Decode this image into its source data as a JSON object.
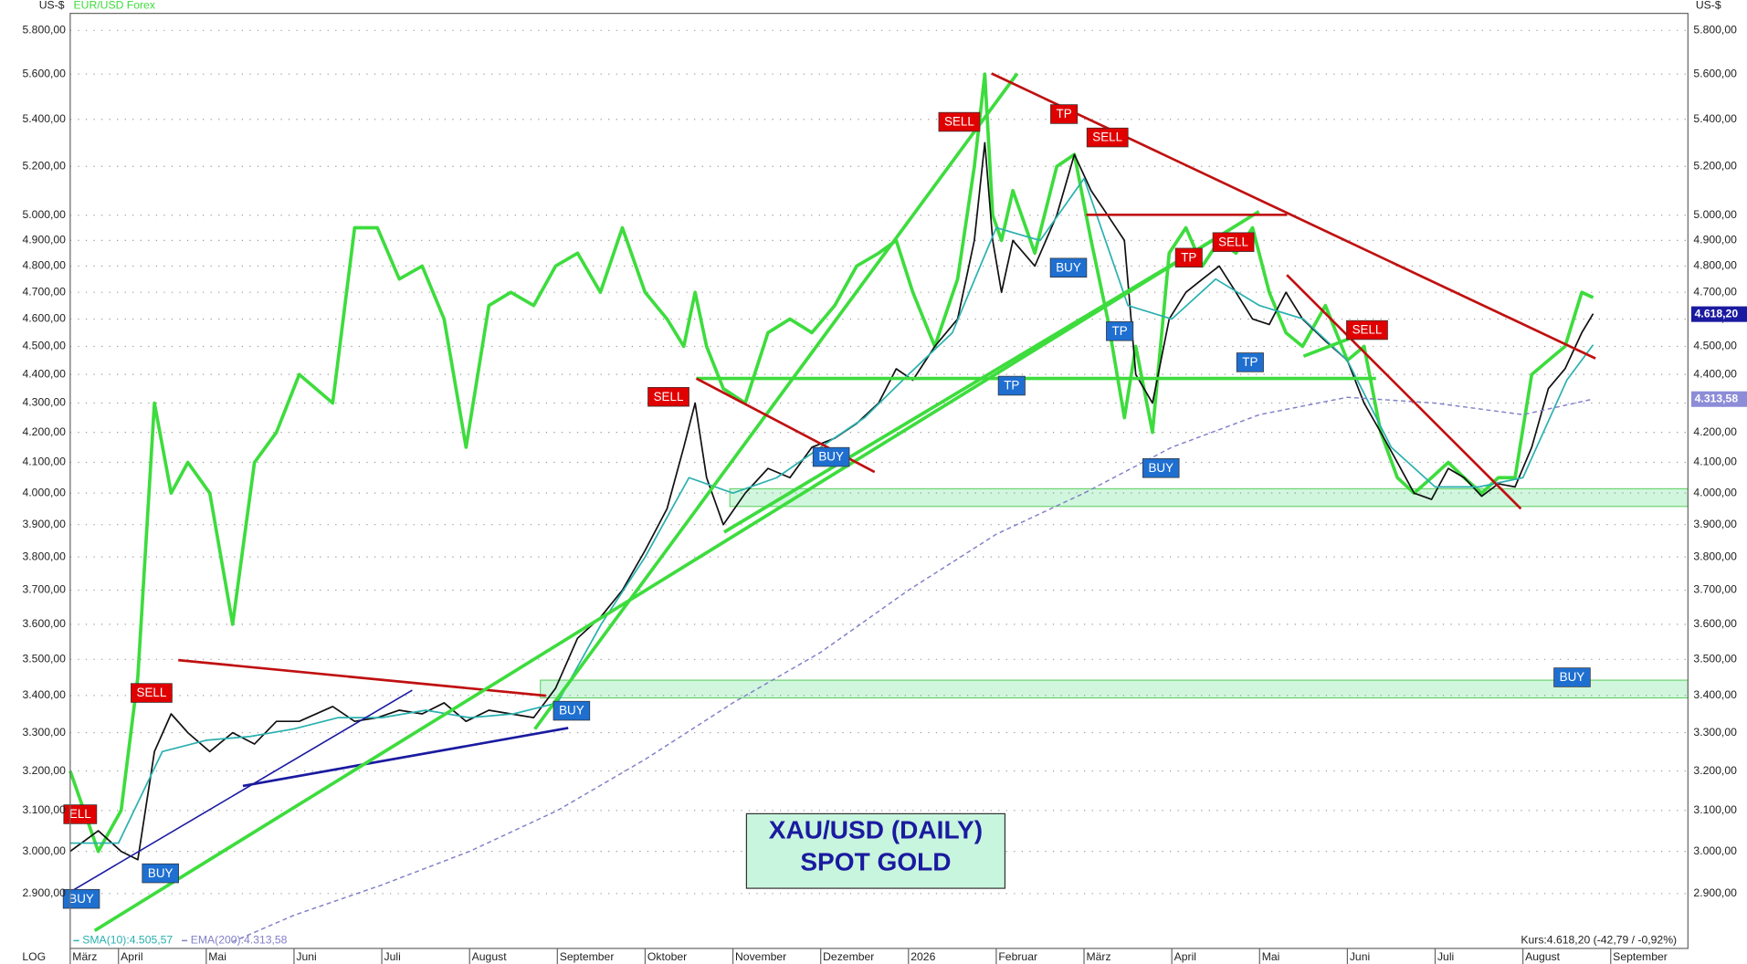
{
  "chart_data": {
    "type": "line",
    "log_scale": true,
    "grid": true,
    "axis_unit_left": "US-$",
    "axis_unit_right": "US-$",
    "scale_label": "LOG",
    "ylim": [
      2775,
      5880
    ],
    "yticks": [
      {
        "value": 2900,
        "label": "2.900,00"
      },
      {
        "value": 3000,
        "label": "3.000,00"
      },
      {
        "value": 3100,
        "label": "3.100,00"
      },
      {
        "value": 3200,
        "label": "3.200,00"
      },
      {
        "value": 3300,
        "label": "3.300,00"
      },
      {
        "value": 3400,
        "label": "3.400,00"
      },
      {
        "value": 3500,
        "label": "3.500,00"
      },
      {
        "value": 3600,
        "label": "3.600,00"
      },
      {
        "value": 3700,
        "label": "3.700,00"
      },
      {
        "value": 3800,
        "label": "3.800,00"
      },
      {
        "value": 3900,
        "label": "3.900,00"
      },
      {
        "value": 4000,
        "label": "4.000,00"
      },
      {
        "value": 4100,
        "label": "4.100,00"
      },
      {
        "value": 4200,
        "label": "4.200,00"
      },
      {
        "value": 4300,
        "label": "4.300,00"
      },
      {
        "value": 4400,
        "label": "4.400,00"
      },
      {
        "value": 4500,
        "label": "4.500,00"
      },
      {
        "value": 4600,
        "label": "4.600,00"
      },
      {
        "value": 4700,
        "label": "4.700,00"
      },
      {
        "value": 4800,
        "label": "4.800,00"
      },
      {
        "value": 4900,
        "label": "4.900,00"
      },
      {
        "value": 5000,
        "label": "5.000,00"
      },
      {
        "value": 5200,
        "label": "5.200,00"
      },
      {
        "value": 5400,
        "label": "5.400,00"
      },
      {
        "value": 5600,
        "label": "5.600,00"
      },
      {
        "value": 5800,
        "label": "5.800,00"
      }
    ],
    "xlim": [
      0.45,
      18.88
    ],
    "xticks": [
      {
        "value": 0.45,
        "label": "März"
      },
      {
        "value": 1,
        "label": "April"
      },
      {
        "value": 2,
        "label": "Mai"
      },
      {
        "value": 3,
        "label": "Juni"
      },
      {
        "value": 4,
        "label": "Juli"
      },
      {
        "value": 5,
        "label": "August"
      },
      {
        "value": 6,
        "label": "September"
      },
      {
        "value": 7,
        "label": "Oktober"
      },
      {
        "value": 8,
        "label": "November"
      },
      {
        "value": 9,
        "label": "Dezember"
      },
      {
        "value": 10,
        "label": "2026"
      },
      {
        "value": 11,
        "label": "Februar"
      },
      {
        "value": 12,
        "label": "März"
      },
      {
        "value": 13,
        "label": "April"
      },
      {
        "value": 14,
        "label": "Mai"
      },
      {
        "value": 15,
        "label": "Juni"
      },
      {
        "value": 16,
        "label": "Juli"
      },
      {
        "value": 17,
        "label": "August"
      },
      {
        "value": 18,
        "label": "September"
      }
    ],
    "series": [
      {
        "name": "EUR/USD Forex",
        "color": "#3ddc3d",
        "x": [
          0.45,
          0.77,
          1.03,
          1.22,
          1.41,
          1.6,
          1.79,
          2.04,
          2.3,
          2.55,
          2.8,
          3.06,
          3.44,
          3.69,
          3.95,
          4.2,
          4.46,
          4.71,
          4.96,
          5.22,
          5.47,
          5.73,
          5.98,
          6.23,
          6.49,
          6.74,
          7.0,
          7.25,
          7.44,
          7.57,
          7.7,
          7.89,
          8.14,
          8.4,
          8.65,
          8.9,
          9.16,
          9.41,
          9.66,
          9.86,
          10.05,
          10.3,
          10.56,
          10.75,
          10.87,
          10.96,
          11.06,
          11.19,
          11.44,
          11.69,
          11.89,
          12.08,
          12.27,
          12.46,
          12.59,
          12.78,
          12.97,
          13.16,
          13.35,
          13.54,
          13.73,
          13.92,
          14.11,
          14.3,
          14.49,
          14.75,
          15.0,
          15.19,
          15.38,
          15.57,
          15.76,
          15.96,
          16.15,
          16.33,
          16.53,
          16.72,
          16.91,
          17.1,
          17.29,
          17.48,
          17.67,
          17.8
        ],
        "values": [
          3200,
          3000,
          3100,
          3450,
          4300,
          4000,
          4100,
          4000,
          3600,
          4100,
          4200,
          4400,
          4300,
          4950,
          4950,
          4750,
          4800,
          4600,
          4150,
          4650,
          4700,
          4650,
          4800,
          4850,
          4700,
          4950,
          4700,
          4600,
          4500,
          4700,
          4500,
          4350,
          4300,
          4550,
          4600,
          4550,
          4650,
          4800,
          4850,
          4900,
          4700,
          4500,
          4750,
          5200,
          5600,
          5000,
          4900,
          5100,
          4850,
          5200,
          5250,
          4900,
          4600,
          4250,
          4500,
          4200,
          4850,
          4950,
          4800,
          4900,
          4850,
          4950,
          4700,
          4550,
          4500,
          4650,
          4450,
          4500,
          4200,
          4050,
          4000,
          4050,
          4100,
          4050,
          4000,
          4050,
          4050,
          4400,
          4450,
          4500,
          4700,
          4680
        ]
      },
      {
        "color": "#111111",
        "x": [
          0.45,
          0.77,
          1.03,
          1.22,
          1.41,
          1.6,
          1.79,
          2.04,
          2.3,
          2.55,
          2.8,
          3.06,
          3.44,
          3.69,
          3.95,
          4.2,
          4.46,
          4.71,
          4.96,
          5.22,
          5.47,
          5.73,
          5.98,
          6.23,
          6.49,
          6.74,
          7.0,
          7.25,
          7.44,
          7.57,
          7.7,
          7.89,
          8.14,
          8.4,
          8.65,
          8.9,
          9.16,
          9.41,
          9.66,
          9.86,
          10.05,
          10.3,
          10.56,
          10.75,
          10.87,
          10.96,
          11.06,
          11.19,
          11.44,
          11.69,
          11.89,
          12.08,
          12.27,
          12.46,
          12.59,
          12.78,
          12.97,
          13.16,
          13.35,
          13.54,
          13.73,
          13.92,
          14.11,
          14.3,
          14.49,
          14.75,
          15.0,
          15.19,
          15.38,
          15.57,
          15.76,
          15.96,
          16.15,
          16.33,
          16.53,
          16.72,
          16.91,
          17.1,
          17.29,
          17.48,
          17.67,
          17.8
        ],
        "values": [
          3000,
          3050,
          3000,
          2980,
          3250,
          3350,
          3300,
          3250,
          3300,
          3270,
          3330,
          3330,
          3370,
          3330,
          3340,
          3360,
          3350,
          3380,
          3330,
          3360,
          3350,
          3340,
          3420,
          3560,
          3620,
          3700,
          3820,
          3950,
          4150,
          4300,
          4050,
          3900,
          4000,
          4080,
          4050,
          4150,
          4180,
          4230,
          4300,
          4420,
          4380,
          4500,
          4600,
          4900,
          5300,
          4900,
          4700,
          4900,
          4800,
          5000,
          5250,
          5100,
          5000,
          4900,
          4400,
          4300,
          4600,
          4700,
          4750,
          4800,
          4700,
          4600,
          4580,
          4700,
          4600,
          4520,
          4450,
          4300,
          4200,
          4100,
          4000,
          3980,
          4080,
          4050,
          3990,
          4030,
          4020,
          4150,
          4350,
          4420,
          4550,
          4620
        ]
      },
      {
        "name": "SMA(10):4.505,57",
        "color": "#2ab0b0",
        "x": [
          0.45,
          1.0,
          1.5,
          2.0,
          2.5,
          3.0,
          3.5,
          4.0,
          4.5,
          5.0,
          5.5,
          6.0,
          6.5,
          7.0,
          7.5,
          8.0,
          8.5,
          9.0,
          9.5,
          10.0,
          10.5,
          11.0,
          11.5,
          12.0,
          12.5,
          13.0,
          13.5,
          14.0,
          14.5,
          15.0,
          15.5,
          16.0,
          16.5,
          17.0,
          17.5,
          17.8
        ],
        "values": [
          3020,
          3020,
          3250,
          3280,
          3290,
          3310,
          3340,
          3340,
          3360,
          3340,
          3350,
          3380,
          3600,
          3800,
          4050,
          4000,
          4050,
          4150,
          4250,
          4400,
          4550,
          4950,
          4900,
          5150,
          4650,
          4600,
          4750,
          4650,
          4600,
          4450,
          4150,
          4020,
          4020,
          4050,
          4380,
          4505.57
        ]
      },
      {
        "name": "EMA(200):4.313,58",
        "color": "#8080c8",
        "dash": true,
        "x": [
          2.3,
          3.0,
          4.0,
          5.0,
          6.0,
          7.0,
          8.0,
          9.0,
          10.0,
          11.0,
          12.0,
          13.0,
          14.0,
          15.0,
          16.0,
          17.0,
          17.8
        ],
        "values": [
          2790,
          2850,
          2920,
          3000,
          3100,
          3230,
          3380,
          3520,
          3700,
          3870,
          4000,
          4150,
          4260,
          4320,
          4300,
          4260,
          4313.58
        ]
      }
    ],
    "price_tags": [
      {
        "value": 4618.2,
        "label": "4.618,20",
        "color": "#1a1aa0"
      },
      {
        "value": 4313.58,
        "label": "4.313,58",
        "color": "#8c8cd8"
      }
    ],
    "quote": "Kurs:4.618,20 (-42,79 / -0,92%)",
    "title_lines": [
      "XAU/USD (DAILY)",
      "SPOT GOLD"
    ],
    "annotations": [
      {
        "text": "ELL",
        "color": "#e00000"
      },
      {
        "text": "BUY",
        "color": "#1e6fd0"
      },
      {
        "text": "SELL",
        "color": "#e00000"
      },
      {
        "text": "BUY",
        "color": "#1e6fd0"
      },
      {
        "text": "BUY",
        "color": "#1e6fd0"
      },
      {
        "text": "SELL",
        "color": "#e00000"
      },
      {
        "text": "BUY",
        "color": "#1e6fd0"
      },
      {
        "text": "SELL",
        "color": "#e00000"
      },
      {
        "text": "TP",
        "color": "#1e6fd0"
      },
      {
        "text": "TP",
        "color": "#e00000"
      },
      {
        "text": "BUY",
        "color": "#1e6fd0"
      },
      {
        "text": "SELL",
        "color": "#e00000"
      },
      {
        "text": "TP",
        "color": "#1e6fd0"
      },
      {
        "text": "TP",
        "color": "#e00000"
      },
      {
        "text": "SELL",
        "color": "#e00000"
      },
      {
        "text": "BUY",
        "color": "#1e6fd0"
      },
      {
        "text": "TP",
        "color": "#1e6fd0"
      },
      {
        "text": "SELL",
        "color": "#e00000"
      },
      {
        "text": "BUY",
        "color": "#1e6fd0"
      }
    ]
  }
}
